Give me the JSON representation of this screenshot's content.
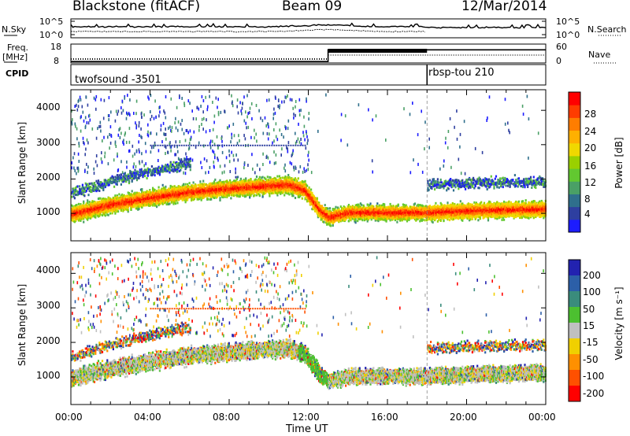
{
  "header": {
    "station": "Blackstone (fitACF)",
    "beam": "Beam 09",
    "date": "12/Mar/2014"
  },
  "noise_panel": {
    "left_label": "N.Sky",
    "right_label": "N.Search",
    "left_ticks": [
      "10^5",
      "10^0"
    ],
    "right_ticks": [
      "10^5",
      "10^0"
    ]
  },
  "freq_panel": {
    "left_label_line1": "Freq.",
    "left_label_line2": "[MHz]",
    "right_label": "Nave",
    "left_ticks": [
      "18",
      "8"
    ],
    "right_ticks": [
      "60",
      "0"
    ]
  },
  "cpid_panel": {
    "label": "CPID",
    "programs": [
      "twofsound -3501",
      "rbsp-tou 210"
    ]
  },
  "power_panel": {
    "ylabel": "Slant Range [km]",
    "yticks": [
      "1000",
      "2000",
      "3000",
      "4000"
    ],
    "colorbar_label": "Power [dB]",
    "colorbar_ticks": [
      "4",
      "8",
      "12",
      "16",
      "20",
      "24",
      "28"
    ],
    "colors": [
      "#1c1cff",
      "#2e3fa0",
      "#2f6f8c",
      "#4aa066",
      "#62c830",
      "#9ad000",
      "#f0d800",
      "#ffb000",
      "#ff7d00",
      "#ff3c00",
      "#ff0000"
    ]
  },
  "velocity_panel": {
    "ylabel": "Slant Range [km]",
    "yticks": [
      "1000",
      "2000",
      "3000",
      "4000"
    ],
    "colorbar_label": "Velocity [m s⁻¹]",
    "colorbar_ticks": [
      "200",
      "100",
      "50",
      "15",
      "-15",
      "-50",
      "-100",
      "-200"
    ],
    "colors": [
      "#2222b0",
      "#2c5fa8",
      "#3a8c7c",
      "#4cc030",
      "#c0c0c0",
      "#f0d000",
      "#ff9000",
      "#ff5000",
      "#ff0000"
    ]
  },
  "x_axis": {
    "ticks": [
      "00:00",
      "04:00",
      "08:00",
      "12:00",
      "16:00",
      "20:00",
      "00:00"
    ],
    "label": "Time UT"
  },
  "chart_data": {
    "type": "heatmap",
    "x_range_hours": [
      0,
      24
    ],
    "y_range_km": [
      200,
      4600
    ],
    "main_band_center_km": [
      [
        0.0,
        1000
      ],
      [
        2.0,
        1280
      ],
      [
        4.0,
        1480
      ],
      [
        6.0,
        1650
      ],
      [
        8.0,
        1750
      ],
      [
        10.0,
        1830
      ],
      [
        11.0,
        1860
      ],
      [
        11.8,
        1700
      ],
      [
        12.5,
        1150
      ],
      [
        13.0,
        900
      ],
      [
        14.0,
        1050
      ],
      [
        16.0,
        1050
      ],
      [
        18.0,
        1050
      ],
      [
        20.0,
        1100
      ],
      [
        22.0,
        1130
      ],
      [
        24.0,
        1150
      ]
    ],
    "program_change_hour": 18.0,
    "freq_mhz": [
      [
        0,
        8.4
      ],
      [
        13,
        8.4
      ],
      [
        13,
        15.5
      ],
      [
        18,
        15.5
      ],
      [
        18,
        15.5
      ],
      [
        24,
        15.5
      ]
    ]
  }
}
